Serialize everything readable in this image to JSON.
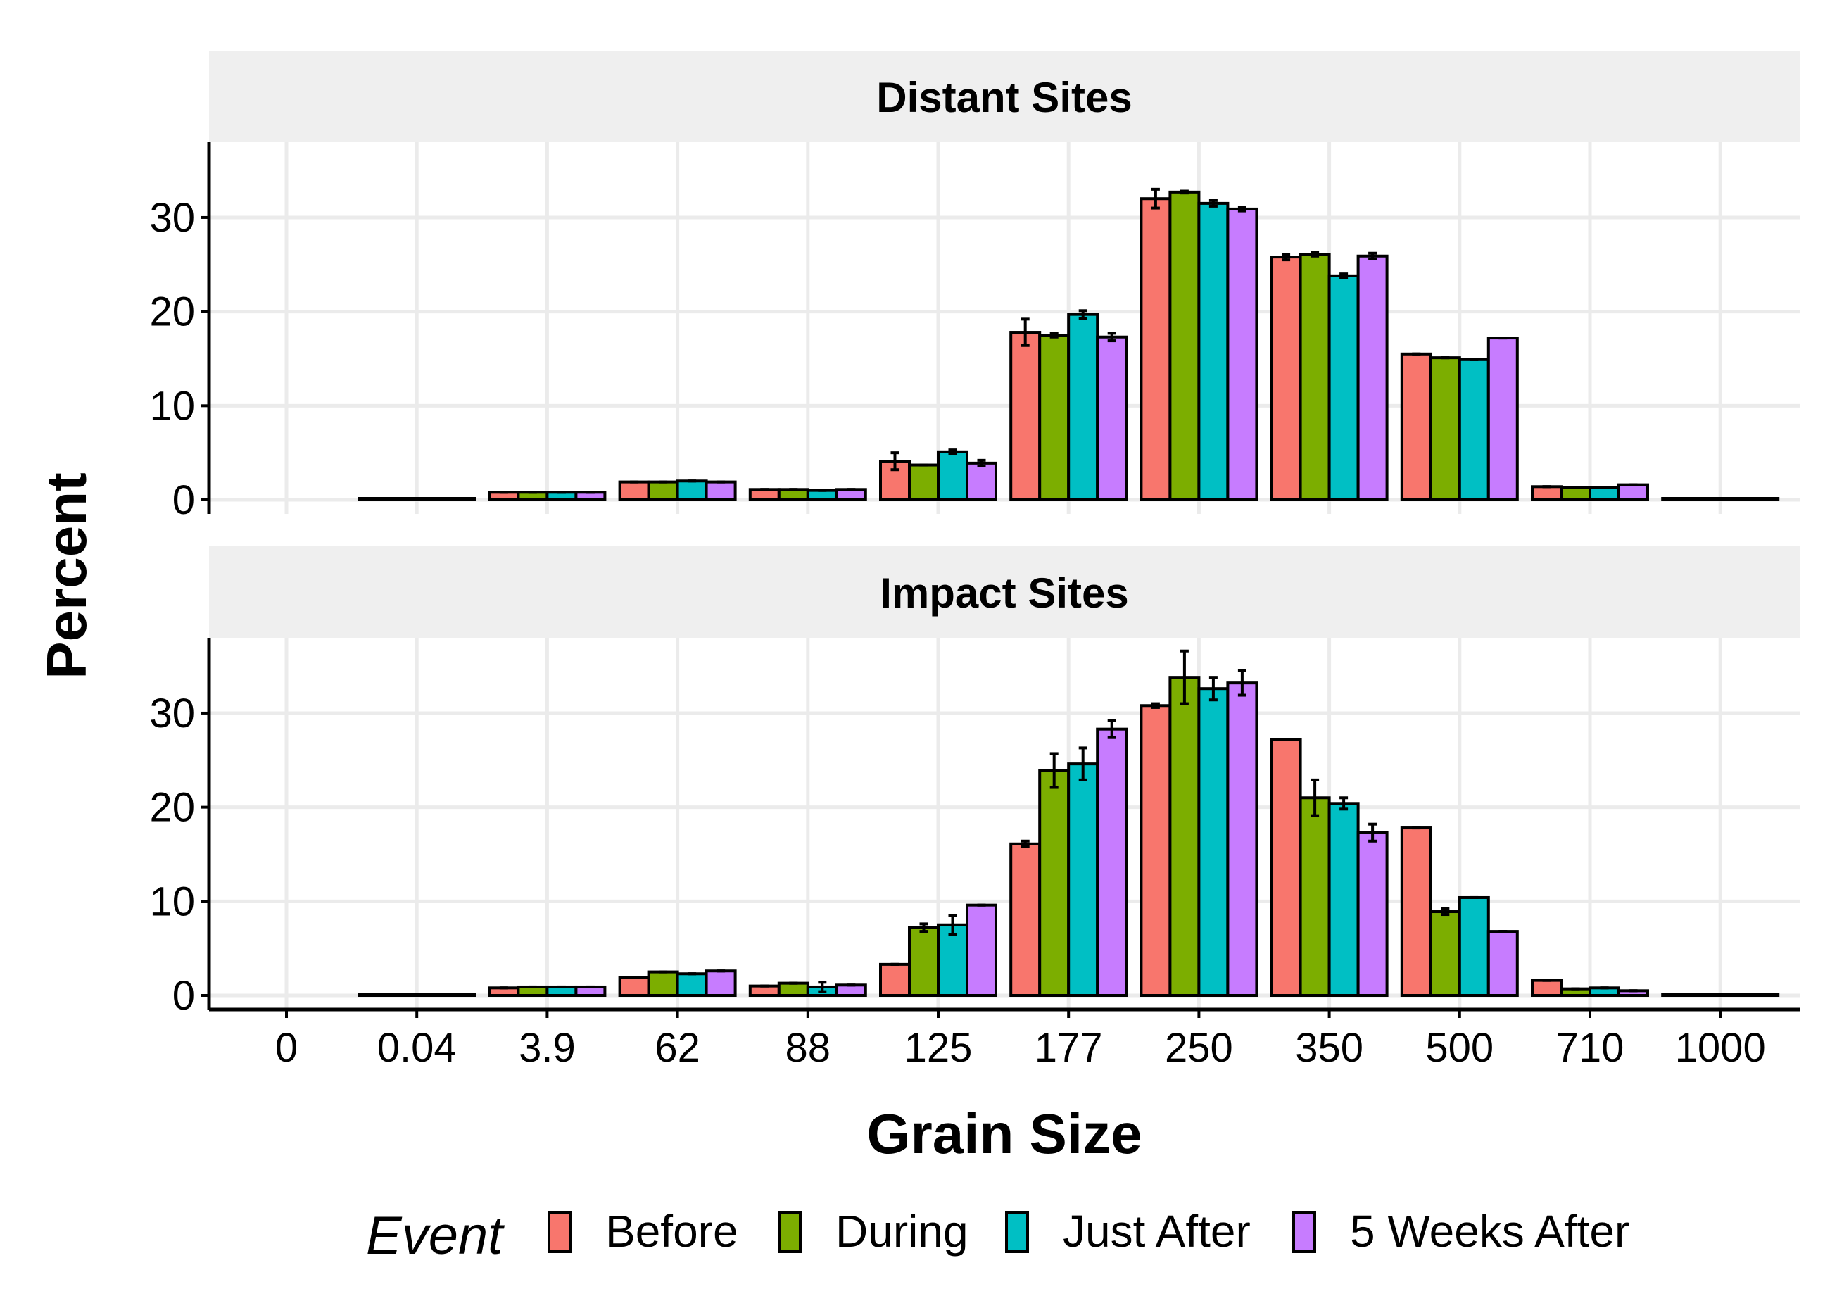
{
  "chart_data": {
    "type": "bar",
    "categories": [
      "0",
      "0.04",
      "3.9",
      "62",
      "88",
      "125",
      "177",
      "250",
      "350",
      "500",
      "710",
      "1000"
    ],
    "xlabel": "Grain Size",
    "ylabel": "Percent",
    "ylim": [
      0,
      38
    ],
    "yticks": [
      0,
      10,
      20,
      30
    ],
    "grid": true,
    "legend": {
      "title": "Event",
      "position": "bottom",
      "entries": [
        "Before",
        "During",
        "Just After",
        "5 Weeks After"
      ]
    },
    "colors": {
      "Before": "#F8766D",
      "During": "#7CAE00",
      "Just After": "#00BFC4",
      "5 Weeks After": "#C77CFF"
    },
    "panels": [
      {
        "title": "Distant Sites",
        "series": [
          {
            "name": "Before",
            "values": [
              null,
              0.1,
              0.8,
              1.9,
              1.1,
              4.1,
              17.8,
              32.0,
              25.8,
              15.5,
              1.4,
              0.1
            ],
            "errors": [
              0,
              0,
              0,
              0,
              0,
              0.9,
              1.4,
              1.0,
              0.3,
              0,
              0,
              0
            ]
          },
          {
            "name": "During",
            "values": [
              null,
              0.1,
              0.8,
              1.9,
              1.1,
              3.7,
              17.5,
              32.7,
              26.1,
              15.1,
              1.3,
              0.1
            ],
            "errors": [
              0,
              0,
              0,
              0,
              0,
              0,
              0.2,
              0.1,
              0.2,
              0,
              0,
              0
            ]
          },
          {
            "name": "Just After",
            "values": [
              null,
              0.1,
              0.8,
              2.0,
              1.0,
              5.1,
              19.7,
              31.5,
              23.8,
              14.9,
              1.3,
              0.1
            ],
            "errors": [
              0,
              0,
              0,
              0,
              0,
              0.2,
              0.4,
              0.3,
              0.2,
              0,
              0,
              0
            ]
          },
          {
            "name": "5 Weeks After",
            "values": [
              null,
              0.1,
              0.8,
              1.9,
              1.1,
              3.9,
              17.3,
              30.9,
              25.9,
              17.2,
              1.6,
              0.1
            ],
            "errors": [
              0,
              0,
              0,
              0,
              0,
              0.3,
              0.4,
              0.2,
              0.3,
              0,
              0,
              0
            ]
          }
        ]
      },
      {
        "title": "Impact Sites",
        "series": [
          {
            "name": "Before",
            "values": [
              null,
              0.1,
              0.8,
              1.9,
              1.0,
              3.3,
              16.1,
              30.8,
              27.2,
              17.8,
              1.6,
              0.1
            ],
            "errors": [
              0,
              0,
              0,
              0,
              0,
              0,
              0.3,
              0.2,
              0,
              0,
              0,
              0
            ]
          },
          {
            "name": "During",
            "values": [
              null,
              0.1,
              0.9,
              2.5,
              1.3,
              7.2,
              23.9,
              33.8,
              21.0,
              8.9,
              0.7,
              0.1
            ],
            "errors": [
              0,
              0,
              0,
              0,
              0,
              0.4,
              1.8,
              2.8,
              1.9,
              0.3,
              0,
              0
            ]
          },
          {
            "name": "Just After",
            "values": [
              null,
              0.1,
              0.9,
              2.3,
              0.9,
              7.5,
              24.6,
              32.6,
              20.4,
              10.4,
              0.8,
              0.1
            ],
            "errors": [
              0,
              0,
              0,
              0,
              0.5,
              1.0,
              1.7,
              1.2,
              0.6,
              0,
              0,
              0
            ]
          },
          {
            "name": "5 Weeks After",
            "values": [
              null,
              0.1,
              0.9,
              2.6,
              1.1,
              9.6,
              28.3,
              33.2,
              17.3,
              6.8,
              0.5,
              0.1
            ],
            "errors": [
              0,
              0,
              0,
              0,
              0,
              0,
              0.9,
              1.3,
              0.9,
              0,
              0,
              0
            ]
          }
        ]
      }
    ]
  }
}
